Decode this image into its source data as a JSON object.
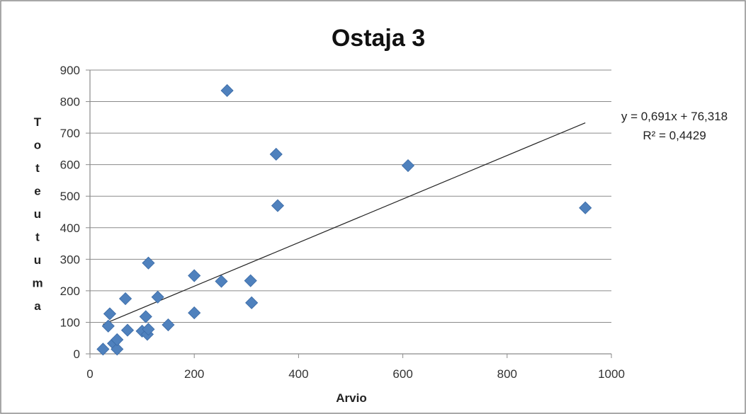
{
  "chart_data": {
    "type": "scatter",
    "title": "Ostaja 3",
    "xlabel": "Arvio",
    "ylabel": "Toteutuma",
    "xlim": [
      0,
      1000
    ],
    "ylim": [
      0,
      900
    ],
    "xticks": [
      0,
      200,
      400,
      600,
      800,
      1000
    ],
    "yticks": [
      0,
      100,
      200,
      300,
      400,
      500,
      600,
      700,
      800,
      900
    ],
    "xtick_labels": [
      "0",
      "200",
      "400",
      "600",
      "800",
      "1000"
    ],
    "ytick_labels": [
      "0",
      "100",
      "200",
      "300",
      "400",
      "500",
      "600",
      "700",
      "800",
      "900"
    ],
    "grid": "horizontal",
    "series": [
      {
        "color": "#4f81bd",
        "marker": "diamond",
        "points": [
          {
            "x": 25,
            "y": 15
          },
          {
            "x": 35,
            "y": 88
          },
          {
            "x": 38,
            "y": 127
          },
          {
            "x": 45,
            "y": 33
          },
          {
            "x": 52,
            "y": 15
          },
          {
            "x": 52,
            "y": 45
          },
          {
            "x": 68,
            "y": 175
          },
          {
            "x": 72,
            "y": 75
          },
          {
            "x": 100,
            "y": 72
          },
          {
            "x": 107,
            "y": 118
          },
          {
            "x": 110,
            "y": 62
          },
          {
            "x": 112,
            "y": 288
          },
          {
            "x": 112,
            "y": 78
          },
          {
            "x": 130,
            "y": 180
          },
          {
            "x": 150,
            "y": 92
          },
          {
            "x": 200,
            "y": 248
          },
          {
            "x": 200,
            "y": 130
          },
          {
            "x": 252,
            "y": 230
          },
          {
            "x": 263,
            "y": 835
          },
          {
            "x": 308,
            "y": 232
          },
          {
            "x": 310,
            "y": 162
          },
          {
            "x": 357,
            "y": 633
          },
          {
            "x": 360,
            "y": 470
          },
          {
            "x": 610,
            "y": 597
          },
          {
            "x": 950,
            "y": 463
          }
        ]
      }
    ],
    "trendline": {
      "type": "linear",
      "slope": 0.691,
      "intercept": 76.318,
      "x_range": [
        25,
        950
      ],
      "color": "#222222"
    },
    "annotations": {
      "equation": "y = 0,691x + 76,318",
      "r_squared": "R² = 0,4429"
    }
  }
}
